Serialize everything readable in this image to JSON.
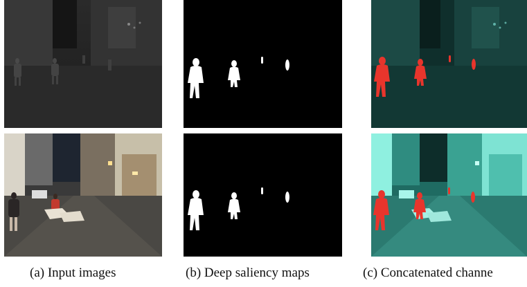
{
  "figure": {
    "captions": {
      "a": "(a) Input images",
      "b": "(b) Deep saliency maps",
      "c": "(c) Concatenated channe"
    }
  }
}
